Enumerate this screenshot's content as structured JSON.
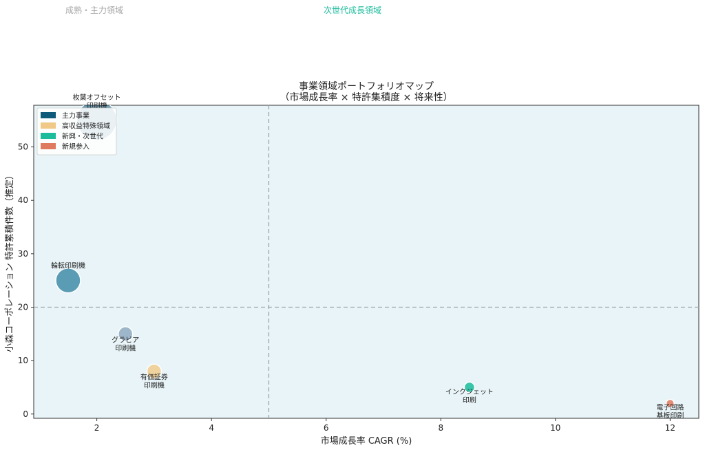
{
  "zones": [
    {
      "label": "成熟・主力領域",
      "color": "#a6a6a6"
    },
    {
      "label": "次世代成長領域",
      "color": "#1abc9c"
    }
  ],
  "chart_data": {
    "type": "scatter",
    "title": [
      "事業領域ポートフォリオマップ",
      "（市場成長率 × 特許集積度 × 将来性）"
    ],
    "xlabel": "市場成長率 CAGR (%)",
    "ylabel": "小森コーポレーション 特許累積件数（推定）",
    "xlim": [
      0.9,
      12.5
    ],
    "ylim": [
      -0.8,
      57.8
    ],
    "xticks": [
      2,
      4,
      6,
      8,
      10,
      12
    ],
    "yticks": [
      0,
      10,
      20,
      30,
      40,
      50
    ],
    "reference_lines": {
      "x": 5,
      "y": 20
    },
    "background": "#e8f4f8",
    "legend_position": "top-left",
    "legend": [
      {
        "label": "主力事業",
        "color": "#0e5a7a"
      },
      {
        "label": "高収益特殊領域",
        "color": "#f0c987"
      },
      {
        "label": "新興・次世代",
        "color": "#1abc9c"
      },
      {
        "label": "新規参入",
        "color": "#e07a5f"
      }
    ],
    "points": [
      {
        "label": [
          "枚葉オフセット",
          "印刷機"
        ],
        "x": 2.0,
        "y": 55,
        "category": "主力事業",
        "color": "#0e5a7a",
        "size_rel": 1.0,
        "opacity": 0.55
      },
      {
        "label": [
          "輪転印刷機"
        ],
        "x": 1.5,
        "y": 25,
        "category": "主力事業",
        "color": "#2b7f9e",
        "size_rel": 0.62,
        "opacity": 0.75
      },
      {
        "label": [
          "グラビア",
          "印刷機"
        ],
        "x": 2.5,
        "y": 15,
        "category": "主力事業",
        "color": "#8aa6bd",
        "size_rel": 0.36,
        "opacity": 0.8
      },
      {
        "label": [
          "有価証券",
          "印刷機"
        ],
        "x": 3.0,
        "y": 8,
        "category": "高収益特殊領域",
        "color": "#f0c987",
        "size_rel": 0.36,
        "opacity": 0.8
      },
      {
        "label": [
          "インクジェット",
          "印刷"
        ],
        "x": 8.5,
        "y": 5,
        "category": "新興・次世代",
        "color": "#1abc9c",
        "size_rel": 0.26,
        "opacity": 0.85
      },
      {
        "label": [
          "電子回路",
          "基板印刷"
        ],
        "x": 12.0,
        "y": 2,
        "category": "新規参入",
        "color": "#e07a5f",
        "size_rel": 0.2,
        "opacity": 0.85
      }
    ]
  }
}
